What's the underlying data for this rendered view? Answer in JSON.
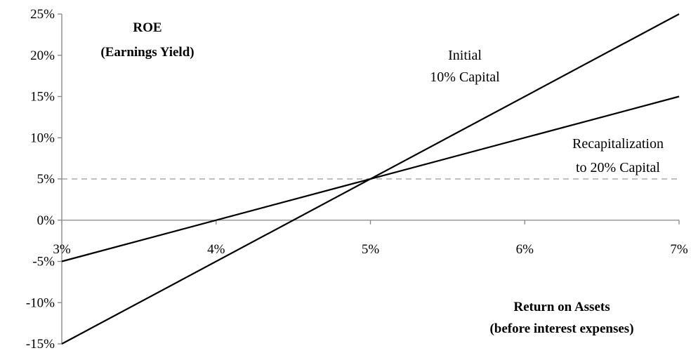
{
  "chart_data": {
    "type": "line",
    "x": [
      3,
      4,
      5,
      6,
      7
    ],
    "x_tick_labels": [
      "3%",
      "4%",
      "5%",
      "6%",
      "7%"
    ],
    "y_tick_labels": [
      "25%",
      "20%",
      "15%",
      "10%",
      "5%",
      "0%",
      "-5%",
      "-10%",
      "-15%"
    ],
    "y_ticks": [
      25,
      20,
      15,
      10,
      5,
      0,
      -5,
      -10,
      -15
    ],
    "xlim": [
      3,
      7
    ],
    "ylim": [
      -15,
      25
    ],
    "ylabel_lines": [
      "ROE",
      "(Earnings Yield)"
    ],
    "xlabel_lines": [
      "Return on Assets",
      "(before interest expenses)"
    ],
    "series": [
      {
        "name": "Initial 10% Capital",
        "label_lines": [
          "Initial",
          "10% Capital"
        ],
        "x": [
          3,
          7
        ],
        "y": [
          -15,
          25
        ],
        "color": "#000000"
      },
      {
        "name": "Recapitalization to 20% Capital",
        "label_lines": [
          "Recapitalization",
          "to 20% Capital"
        ],
        "x": [
          3,
          7
        ],
        "y": [
          -5,
          15
        ],
        "color": "#000000"
      }
    ],
    "reference_line": {
      "y": 5,
      "style": "dashed",
      "color": "#bfbfbf"
    },
    "grid": false,
    "legend": "none"
  }
}
